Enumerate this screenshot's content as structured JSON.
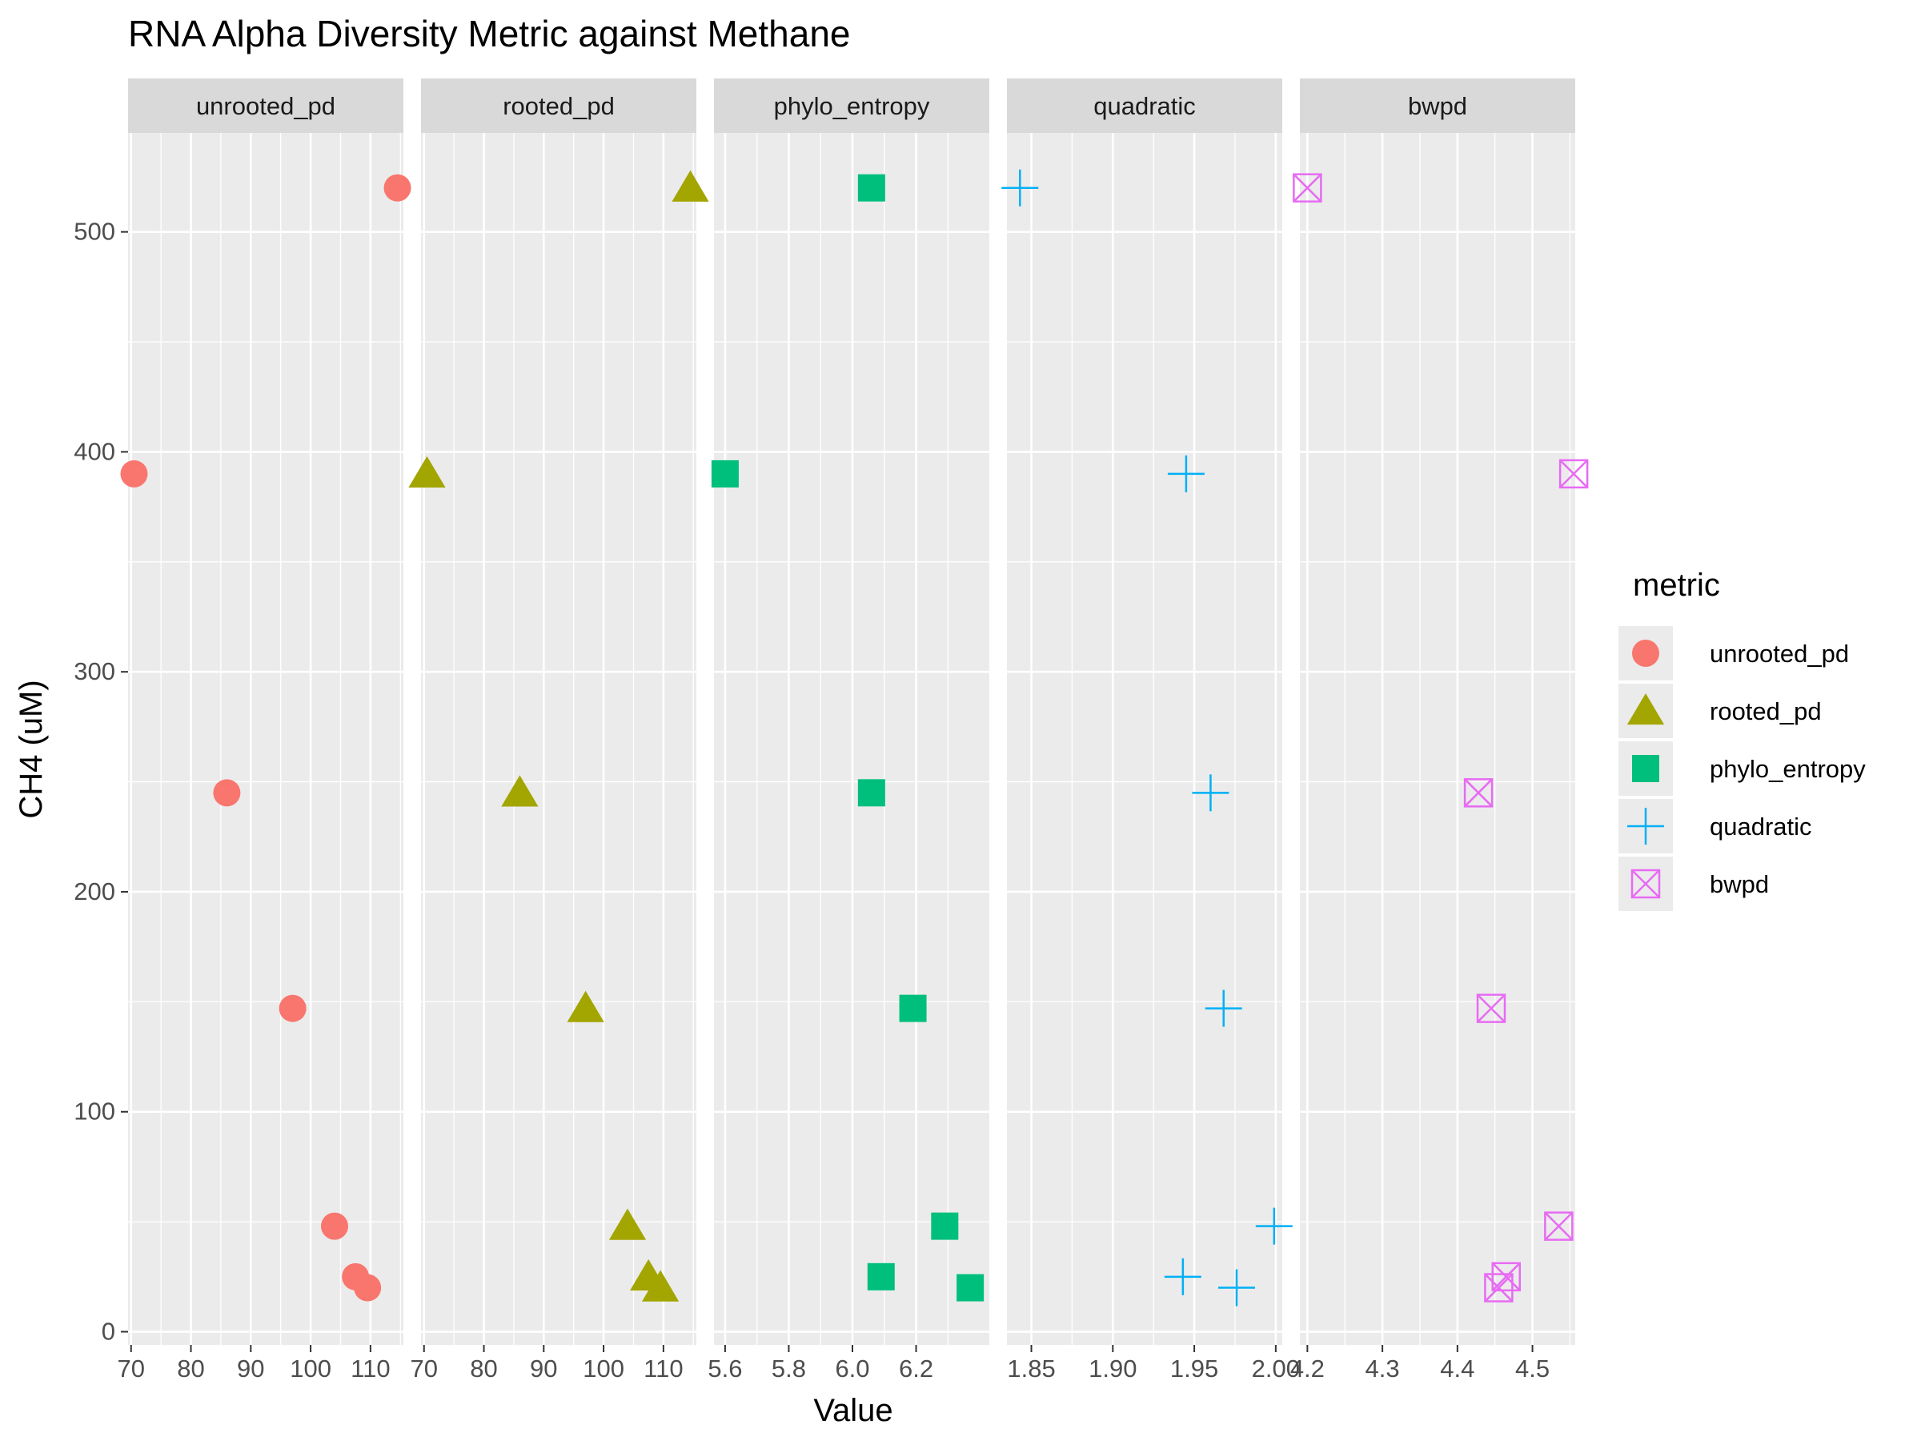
{
  "chart_data": {
    "type": "scatter",
    "title": "RNA Alpha Diversity Metric against Methane",
    "xlabel": "Value",
    "ylabel": "CH4 (uM)",
    "y_ticks": [
      "0",
      "100",
      "200",
      "300",
      "400",
      "500"
    ],
    "y_tick_values": [
      0,
      100,
      200,
      300,
      400,
      500
    ],
    "ylim": [
      -6,
      545
    ],
    "grid": true,
    "legend": {
      "title": "metric",
      "placement": "right",
      "entries": [
        "unrooted_pd",
        "rooted_pd",
        "phylo_entropy",
        "quadratic",
        "bwpd"
      ]
    },
    "y": [
      520,
      390,
      245,
      147,
      48,
      25,
      20
    ],
    "panels": [
      {
        "name": "unrooted_pd",
        "strip_label": "unrooted_pd",
        "shape": "circle",
        "color": "#F8766D",
        "xlim": [
          69.5,
          115.5
        ],
        "x_ticks": [
          "70",
          "80",
          "90",
          "100",
          "110"
        ],
        "x_tick_values": [
          70,
          80,
          90,
          100,
          110
        ],
        "x": [
          114.5,
          70.5,
          86,
          97,
          104,
          107.5,
          109.5
        ]
      },
      {
        "name": "rooted_pd",
        "strip_label": "rooted_pd",
        "shape": "triangle",
        "color": "#A3A500",
        "xlim": [
          69.5,
          115.5
        ],
        "x_ticks": [
          "70",
          "80",
          "90",
          "100",
          "110"
        ],
        "x_tick_values": [
          70,
          80,
          90,
          100,
          110
        ],
        "x": [
          114.5,
          70.5,
          86,
          97,
          104,
          107.5,
          109.5
        ]
      },
      {
        "name": "phylo_entropy",
        "strip_label": "phylo_entropy",
        "shape": "square",
        "color": "#00BF7D",
        "xlim": [
          5.565,
          6.43
        ],
        "x_ticks": [
          "5.6",
          "5.8",
          "6.0",
          "6.2"
        ],
        "x_tick_values": [
          5.6,
          5.8,
          6.0,
          6.2
        ],
        "x": [
          6.06,
          5.6,
          6.06,
          6.19,
          6.29,
          6.09,
          6.37
        ]
      },
      {
        "name": "quadratic",
        "strip_label": "quadratic",
        "shape": "plus",
        "color": "#00B0F6",
        "xlim": [
          1.835,
          2.004
        ],
        "x_ticks": [
          "1.85",
          "1.90",
          "1.95",
          "2.00"
        ],
        "x_tick_values": [
          1.85,
          1.9,
          1.95,
          2.0
        ],
        "x": [
          1.843,
          1.945,
          1.96,
          1.968,
          1.999,
          1.943,
          1.976
        ]
      },
      {
        "name": "bwpd",
        "strip_label": "bwpd",
        "shape": "boxcross",
        "color": "#E76BF3",
        "xlim": [
          4.19,
          4.557
        ],
        "x_ticks": [
          "4.2",
          "4.3",
          "4.4",
          "4.5"
        ],
        "x_tick_values": [
          4.2,
          4.3,
          4.4,
          4.5
        ],
        "x": [
          4.2,
          4.555,
          4.428,
          4.445,
          4.535,
          4.465,
          4.455
        ]
      }
    ]
  }
}
